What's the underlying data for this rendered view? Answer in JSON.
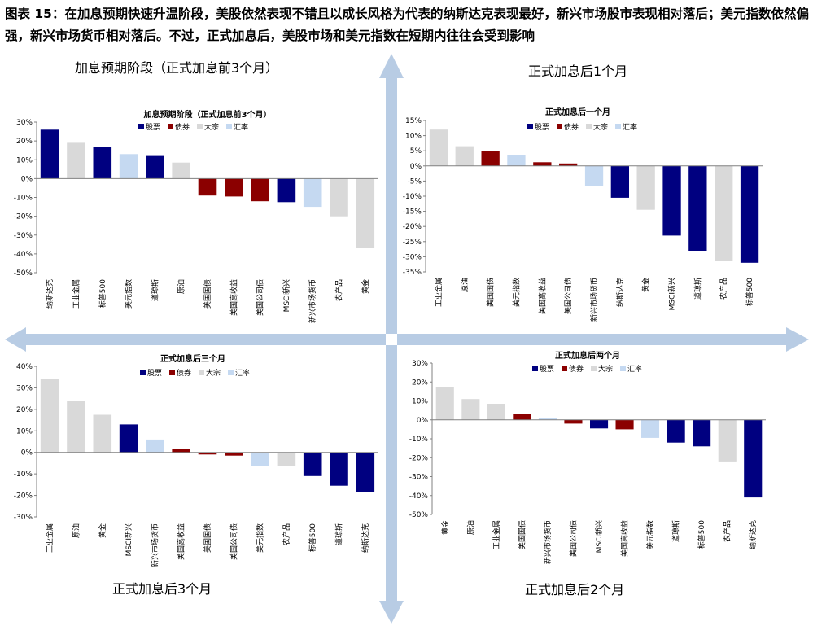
{
  "figure": {
    "title": "图表 15：在加息预期快速升温阶段，美股依然表现不错且以成长风格为代表的纳斯达克表现最好，新兴市场股市表现相对落后；美元指数依然偏强，新兴市场货币相对落后。不过，正式加息后，美股市场和美元指数在短期内往往会受到影响",
    "quadrant_labels": {
      "top_left": "加息预期阶段（正式加息前3个月）",
      "top_right": "正式加息后1个月",
      "bottom_left": "正式加息后3个月",
      "bottom_right": "正式加息后2个月"
    },
    "colors": {
      "股票": "#000080",
      "债券": "#8B0000",
      "大宗": "#D9D9D9",
      "汇率": "#C5D9F1",
      "arrow": "#B8CCE4"
    }
  },
  "chart_data": [
    {
      "type": "bar",
      "title": "加息预期阶段（正式加息前3个月）",
      "legend": [
        "股票",
        "债券",
        "大宗",
        "汇率"
      ],
      "ylim": [
        -50,
        30
      ],
      "yticks": [
        30,
        20,
        10,
        0,
        -10,
        -20,
        -30,
        -40,
        -50
      ],
      "categories": [
        "纳斯达克",
        "工业金属",
        "标普500",
        "美元指数",
        "道琼斯",
        "原油",
        "美国国债",
        "美国高收益",
        "美国公司债",
        "MSCI新兴",
        "新兴市场货币",
        "农产品",
        "黄金"
      ],
      "values": [
        26,
        19,
        17,
        13,
        12,
        8.5,
        -9,
        -9.5,
        -12,
        -12.5,
        -15,
        -20,
        -37
      ],
      "classes": [
        "股票",
        "大宗",
        "股票",
        "汇率",
        "股票",
        "大宗",
        "债券",
        "债券",
        "债券",
        "股票",
        "汇率",
        "大宗",
        "大宗"
      ]
    },
    {
      "type": "bar",
      "title": "正式加息后一个月",
      "legend": [
        "股票",
        "债券",
        "大宗",
        "汇率"
      ],
      "ylim": [
        -35,
        15
      ],
      "yticks": [
        15,
        10,
        5,
        0,
        -5,
        -10,
        -15,
        -20,
        -25,
        -30,
        -35
      ],
      "categories": [
        "工业金属",
        "原油",
        "美国国债",
        "美元指数",
        "美国高收益",
        "美国公司债",
        "新兴市场货币",
        "纳斯达克",
        "黄金",
        "MSCI新兴",
        "道琼斯",
        "农产品",
        "标普500"
      ],
      "values": [
        12,
        6.5,
        5,
        3.5,
        1.2,
        0.8,
        -6.5,
        -10.5,
        -14.5,
        -23,
        -28,
        -31.5,
        -32
      ],
      "classes": [
        "大宗",
        "大宗",
        "债券",
        "汇率",
        "债券",
        "债券",
        "汇率",
        "股票",
        "大宗",
        "股票",
        "股票",
        "大宗",
        "股票"
      ]
    },
    {
      "type": "bar",
      "title": "正式加息后三个月",
      "legend": [
        "股票",
        "债券",
        "大宗",
        "汇率"
      ],
      "ylim": [
        -30,
        40
      ],
      "yticks": [
        40,
        30,
        20,
        10,
        0,
        -10,
        -20,
        -30
      ],
      "categories": [
        "工业金属",
        "原油",
        "黄金",
        "MSCI新兴",
        "新兴市场货币",
        "美国高收益",
        "美国国债",
        "美国公司债",
        "美元指数",
        "农产品",
        "标普500",
        "道琼斯",
        "纳斯达克"
      ],
      "values": [
        34,
        24,
        17.5,
        13,
        6,
        1.5,
        -1,
        -1.5,
        -6.5,
        -6.5,
        -11,
        -15.5,
        -18.5
      ],
      "classes": [
        "大宗",
        "大宗",
        "大宗",
        "股票",
        "汇率",
        "债券",
        "债券",
        "债券",
        "汇率",
        "大宗",
        "股票",
        "股票",
        "股票"
      ]
    },
    {
      "type": "bar",
      "title": "正式加息后两个月",
      "legend": [
        "股票",
        "债券",
        "大宗",
        "汇率"
      ],
      "ylim": [
        -50,
        30
      ],
      "yticks": [
        30,
        20,
        10,
        0,
        -10,
        -20,
        -30,
        -40,
        -50
      ],
      "categories": [
        "黄金",
        "原油",
        "工业金属",
        "美国国债",
        "新兴市场货币",
        "美国公司债",
        "MSCI新兴",
        "美国高收益",
        "美元指数",
        "道琼斯",
        "标普500",
        "农产品",
        "纳斯达克"
      ],
      "values": [
        17.5,
        11,
        8.5,
        3,
        1,
        -2,
        -4.5,
        -5,
        -9.5,
        -12,
        -14,
        -22,
        -41
      ],
      "classes": [
        "大宗",
        "大宗",
        "大宗",
        "债券",
        "汇率",
        "债券",
        "股票",
        "债券",
        "汇率",
        "股票",
        "股票",
        "大宗",
        "股票"
      ]
    }
  ]
}
